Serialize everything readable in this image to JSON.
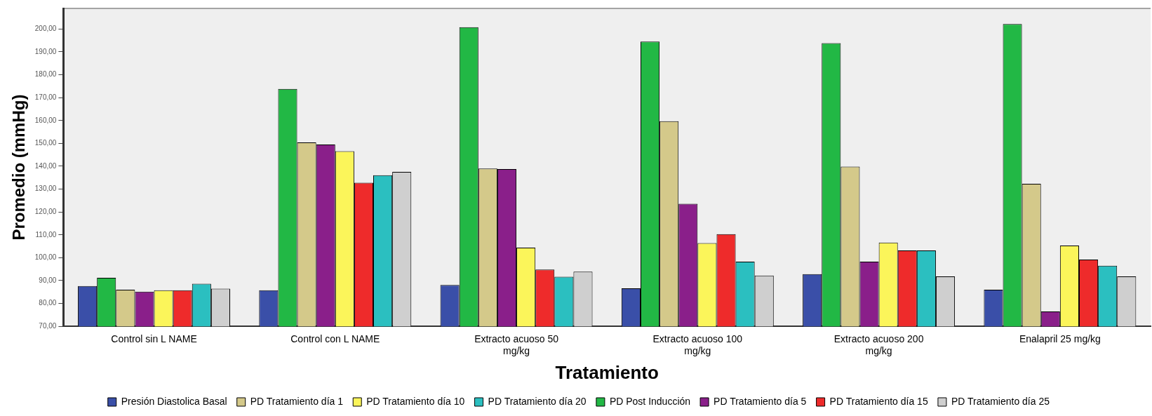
{
  "chart_data": {
    "type": "bar",
    "xlabel": "Tratamiento",
    "ylabel": "Promedio (mmHg)",
    "categories": [
      "Control sin L NAME",
      "Control con L NAME",
      "Extracto acuoso 50 mg/kg",
      "Extracto acuoso 100 mg/kg",
      "Extracto acuoso 200 mg/kg",
      "Enalapril 25 mg/kg"
    ],
    "series": [
      {
        "name": "Presión Diastolica Basal",
        "color": "#3a4fa8",
        "values": [
          87.6,
          85.8,
          88.1,
          86.6,
          92.8,
          86.0
        ]
      },
      {
        "name": "PD Post Inducción",
        "color": "#22b845",
        "values": [
          91.2,
          173.8,
          200.8,
          194.5,
          193.8,
          202.2
        ]
      },
      {
        "name": "PD Tratamiento día 1",
        "color": "#d4c98a",
        "values": [
          86.0,
          150.4,
          139.0,
          159.7,
          139.8,
          132.3
        ]
      },
      {
        "name": "PD Tratamiento día 5",
        "color": "#8a1f8a",
        "values": [
          85.2,
          149.5,
          138.8,
          123.6,
          98.3,
          76.5
        ]
      },
      {
        "name": "PD Tratamiento día 10",
        "color": "#fbf55a",
        "values": [
          85.8,
          146.6,
          104.4,
          106.4,
          106.6,
          105.3
        ]
      },
      {
        "name": "PD Tratamiento día 15",
        "color": "#ee2b2b",
        "values": [
          85.8,
          132.8,
          94.8,
          110.3,
          103.2,
          99.2
        ]
      },
      {
        "name": "PD Tratamiento día 20",
        "color": "#2bbfc0",
        "values": [
          88.6,
          136.1,
          91.7,
          98.3,
          103.2,
          96.5
        ]
      },
      {
        "name": "PD Tratamiento día 25",
        "color": "#cfcfcf",
        "values": [
          86.5,
          137.5,
          93.9,
          92.2,
          91.8,
          91.8
        ]
      }
    ],
    "ylim": [
      70,
      209
    ],
    "yticks": [
      {
        "value": 70,
        "label": "70,00"
      },
      {
        "value": 80,
        "label": "80,00"
      },
      {
        "value": 90,
        "label": "90,00"
      },
      {
        "value": 100,
        "label": "100,00"
      },
      {
        "value": 110,
        "label": "110,00"
      },
      {
        "value": 120,
        "label": "120,00"
      },
      {
        "value": 130,
        "label": "130,00"
      },
      {
        "value": 140,
        "label": "140,00"
      },
      {
        "value": 150,
        "label": "150,00"
      },
      {
        "value": 160,
        "label": "160,00"
      },
      {
        "value": 170,
        "label": "170,00"
      },
      {
        "value": 180,
        "label": "180,00"
      },
      {
        "value": 190,
        "label": "190,00"
      },
      {
        "value": 200,
        "label": "200,00"
      }
    ],
    "grid": false,
    "legend": "bottom"
  }
}
